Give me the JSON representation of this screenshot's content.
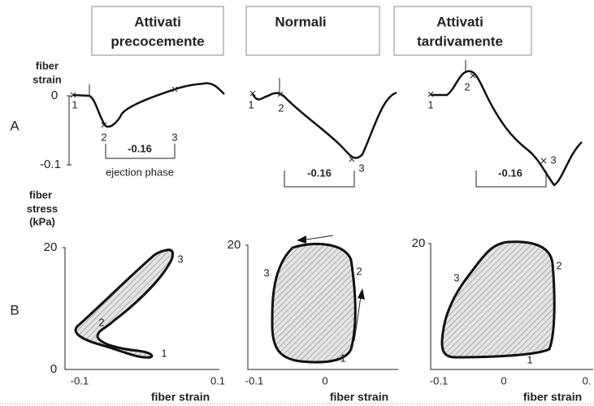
{
  "columns": [
    {
      "title": [
        "Attivati",
        "precocemente"
      ]
    },
    {
      "title": [
        "Normali"
      ]
    },
    {
      "title": [
        "Attivati",
        "tardivamente"
      ]
    }
  ],
  "row_labels": [
    "A",
    "B"
  ],
  "row_a": {
    "y_label": [
      "fiber",
      "strain"
    ],
    "yticks": [
      "0",
      "-0.1"
    ],
    "panels": [
      {
        "points": [
          "1",
          "2",
          "3"
        ],
        "bracket_label": "-0.16",
        "bracket_caption": "ejection phase"
      },
      {
        "points": [
          "1",
          "2",
          "3"
        ],
        "bracket_label": "-0.16"
      },
      {
        "points": [
          "1",
          "2",
          "3"
        ],
        "bracket_label": "-0.16"
      }
    ]
  },
  "row_b": {
    "y_label": [
      "fiber",
      "stress",
      "(kPa)"
    ],
    "panels": [
      {
        "yticks": [
          "20",
          "0"
        ],
        "xticks": [
          "-0.1",
          "0.1"
        ],
        "x_label": "fiber strain",
        "points": [
          "3",
          "2",
          "1"
        ]
      },
      {
        "yticks": [
          "20"
        ],
        "xticks": [
          "-0.1",
          "0"
        ],
        "x_label": "fiber strain",
        "points": [
          "3",
          "2",
          "1"
        ]
      },
      {
        "yticks": [
          "20"
        ],
        "xticks": [
          "-0.1",
          "0",
          "0."
        ],
        "x_label": "fiber strain",
        "points": [
          "3",
          "2",
          "1"
        ]
      }
    ]
  }
}
